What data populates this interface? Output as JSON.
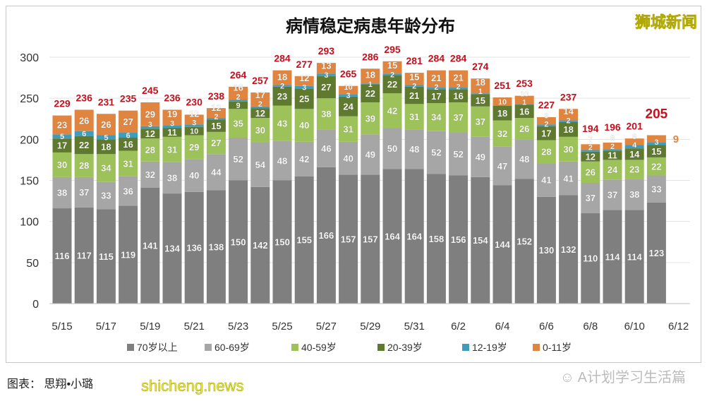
{
  "chart_data": {
    "type": "bar",
    "stacked": true,
    "title": "病情稳定病患年龄分布",
    "categories": [
      "5/15",
      "5/16",
      "5/17",
      "5/18",
      "5/19",
      "5/20",
      "5/21",
      "5/22",
      "5/23",
      "5/24",
      "5/25",
      "5/26",
      "5/27",
      "5/28",
      "5/29",
      "5/30",
      "5/31",
      "6/1",
      "6/2",
      "6/3",
      "6/4",
      "6/5",
      "6/6",
      "6/7",
      "6/8",
      "6/9",
      "6/10",
      "6/11"
    ],
    "x_tick_labels": [
      "5/15",
      "5/17",
      "5/19",
      "5/21",
      "5/23",
      "5/25",
      "5/27",
      "5/29",
      "5/31",
      "6/2",
      "6/4",
      "6/6",
      "6/8",
      "6/10",
      "6/12"
    ],
    "series": [
      {
        "name": "70岁以上",
        "color": "#7f7f7f",
        "values": [
          116,
          117,
          115,
          119,
          141,
          134,
          136,
          138,
          150,
          142,
          150,
          155,
          166,
          157,
          157,
          164,
          164,
          158,
          156,
          154,
          144,
          152,
          130,
          132,
          110,
          114,
          114,
          123
        ]
      },
      {
        "name": "60-69岁",
        "color": "#a6a6a6",
        "values": [
          38,
          37,
          33,
          36,
          32,
          38,
          40,
          44,
          52,
          54,
          48,
          42,
          46,
          40,
          49,
          50,
          48,
          52,
          52,
          49,
          47,
          48,
          41,
          41,
          37,
          37,
          38,
          33
        ]
      },
      {
        "name": "40-59岁",
        "color": "#9dc25a",
        "values": [
          30,
          28,
          34,
          31,
          28,
          31,
          29,
          27,
          35,
          30,
          43,
          40,
          38,
          31,
          39,
          42,
          31,
          34,
          37,
          37,
          32,
          26,
          28,
          30,
          26,
          24,
          23,
          22
        ]
      },
      {
        "name": "20-39岁",
        "color": "#5f7a2e",
        "values": [
          17,
          22,
          18,
          16,
          12,
          11,
          10,
          15,
          9,
          12,
          23,
          25,
          27,
          24,
          22,
          22,
          21,
          17,
          16,
          15,
          18,
          16,
          17,
          18,
          12,
          11,
          14,
          15
        ]
      },
      {
        "name": "12-19岁",
        "color": "#3f9cba",
        "values": [
          5,
          6,
          5,
          6,
          3,
          3,
          3,
          2,
          2,
          2,
          2,
          3,
          3,
          3,
          1,
          2,
          2,
          2,
          2,
          1,
          0,
          1,
          2,
          2,
          2,
          2,
          4,
          3
        ]
      },
      {
        "name": "0-11岁",
        "color": "#e0853f",
        "values": [
          23,
          26,
          26,
          27,
          29,
          19,
          12,
          12,
          16,
          17,
          18,
          12,
          13,
          10,
          18,
          15,
          15,
          21,
          21,
          18,
          10,
          10,
          9,
          14,
          7,
          8,
          8,
          9
        ]
      }
    ],
    "totals": [
      229,
      236,
      231,
      235,
      245,
      236,
      230,
      238,
      264,
      257,
      284,
      277,
      293,
      265,
      286,
      295,
      281,
      284,
      284,
      274,
      251,
      253,
      227,
      237,
      194,
      196,
      201,
      205
    ],
    "total_color": "#c0111f",
    "ylim": [
      0,
      300
    ],
    "yticks": [
      0,
      50,
      100,
      150,
      200,
      250,
      300
    ],
    "xlabel": "",
    "ylabel": "",
    "grid": true,
    "legend_position": "bottom"
  },
  "watermark": "狮城新闻",
  "credit": "图表：  思翔•小璐",
  "site": "shicheng.news",
  "wechat": "A计划学习生活篇"
}
